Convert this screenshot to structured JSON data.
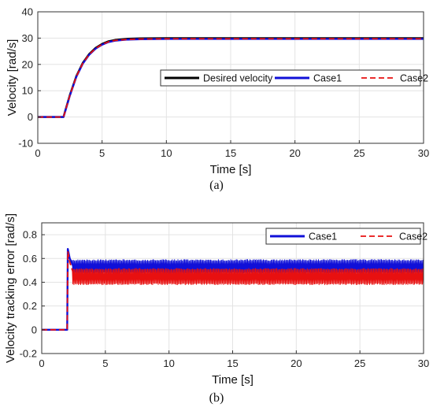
{
  "colors": {
    "desired": "#000000",
    "case1": "#1010d8",
    "case2": "#e81010",
    "grid": "#e3e3e3",
    "axis": "#333333"
  },
  "chart_data": [
    {
      "type": "line",
      "panel_label": "(a)",
      "title": "",
      "xlabel": "Time [s]",
      "ylabel": "Velocity [rad/s]",
      "xlim": [
        0,
        30
      ],
      "ylim": [
        -10,
        40
      ],
      "xticks": [
        0,
        5,
        10,
        15,
        20,
        25,
        30
      ],
      "yticks": [
        -10,
        0,
        10,
        20,
        30,
        40
      ],
      "xtick_labels": [
        "0",
        "5",
        "10",
        "15",
        "20",
        "25",
        "30"
      ],
      "ytick_labels": [
        "-10",
        "0",
        "10",
        "20",
        "30",
        "40"
      ],
      "grid": true,
      "legend": {
        "placement": "center-right",
        "entries": [
          "Desired velocity",
          "Case1",
          "Case2"
        ]
      },
      "series": [
        {
          "name": "Desired velocity",
          "color": "#000000",
          "dash": "solid",
          "x": [
            0,
            2,
            2.1,
            2.5,
            3,
            3.5,
            4,
            4.5,
            5,
            5.5,
            6,
            7,
            8,
            10,
            15,
            20,
            25,
            30
          ],
          "y": [
            0,
            0,
            1.8,
            8.5,
            15.6,
            20.6,
            24.0,
            26.3,
            27.8,
            28.8,
            29.3,
            29.75,
            29.9,
            30,
            30,
            30,
            30,
            30
          ]
        },
        {
          "name": "Case1",
          "color": "#1010d8",
          "dash": "solid",
          "x": [
            0,
            2,
            2.1,
            2.5,
            3,
            3.5,
            4,
            4.5,
            5,
            5.5,
            6,
            7,
            8,
            10,
            15,
            20,
            25,
            30
          ],
          "y": [
            0,
            0,
            1.6,
            8.2,
            15.3,
            20.3,
            23.7,
            26.0,
            27.5,
            28.5,
            29.0,
            29.45,
            29.6,
            29.7,
            29.7,
            29.7,
            29.7,
            29.7
          ]
        },
        {
          "name": "Case2",
          "color": "#e81010",
          "dash": "dashed",
          "x": [
            0,
            2,
            2.1,
            2.5,
            3,
            3.5,
            4,
            4.5,
            5,
            5.5,
            6,
            7,
            8,
            10,
            15,
            20,
            25,
            30
          ],
          "y": [
            0,
            0,
            1.6,
            8.3,
            15.4,
            20.4,
            23.8,
            26.1,
            27.6,
            28.6,
            29.1,
            29.5,
            29.65,
            29.75,
            29.75,
            29.75,
            29.75,
            29.75
          ]
        }
      ]
    },
    {
      "type": "line",
      "panel_label": "(b)",
      "title": "",
      "xlabel": "Time [s]",
      "ylabel": "Velocity tracking error [rad/s]",
      "xlim": [
        0,
        30
      ],
      "ylim": [
        -0.2,
        0.9
      ],
      "xticks": [
        0,
        5,
        10,
        15,
        20,
        25,
        30
      ],
      "yticks": [
        -0.2,
        0,
        0.2,
        0.4,
        0.6,
        0.8
      ],
      "xtick_labels": [
        "0",
        "5",
        "10",
        "15",
        "20",
        "25",
        "30"
      ],
      "ytick_labels": [
        "-0.2",
        "0",
        "0.2",
        "0.4",
        "0.6",
        "0.8"
      ],
      "grid": true,
      "legend": {
        "placement": "top-right",
        "entries": [
          "Case1",
          "Case2"
        ]
      },
      "series": [
        {
          "name": "Case1",
          "color": "#1010d8",
          "dash": "solid",
          "x": [
            0,
            2.0,
            2.05,
            2.2,
            2.5,
            3,
            4,
            5,
            10,
            15,
            20,
            25,
            30
          ],
          "y": [
            0,
            0,
            0.68,
            0.6,
            0.53,
            0.52,
            0.53,
            0.535,
            0.535,
            0.535,
            0.535,
            0.535,
            0.535
          ],
          "band": {
            "x": [
              2.4,
              30
            ],
            "upper": 0.585,
            "lower": 0.48
          }
        },
        {
          "name": "Case2",
          "color": "#e81010",
          "dash": "dashed",
          "x": [
            0,
            2.0,
            2.05,
            2.2,
            2.5,
            3,
            4,
            5,
            10,
            15,
            20,
            25,
            30
          ],
          "y": [
            0,
            0,
            0.66,
            0.57,
            0.47,
            0.45,
            0.45,
            0.45,
            0.45,
            0.45,
            0.45,
            0.45,
            0.45
          ],
          "band": {
            "x": [
              2.4,
              30
            ],
            "upper": 0.51,
            "lower": 0.385
          }
        }
      ]
    }
  ]
}
